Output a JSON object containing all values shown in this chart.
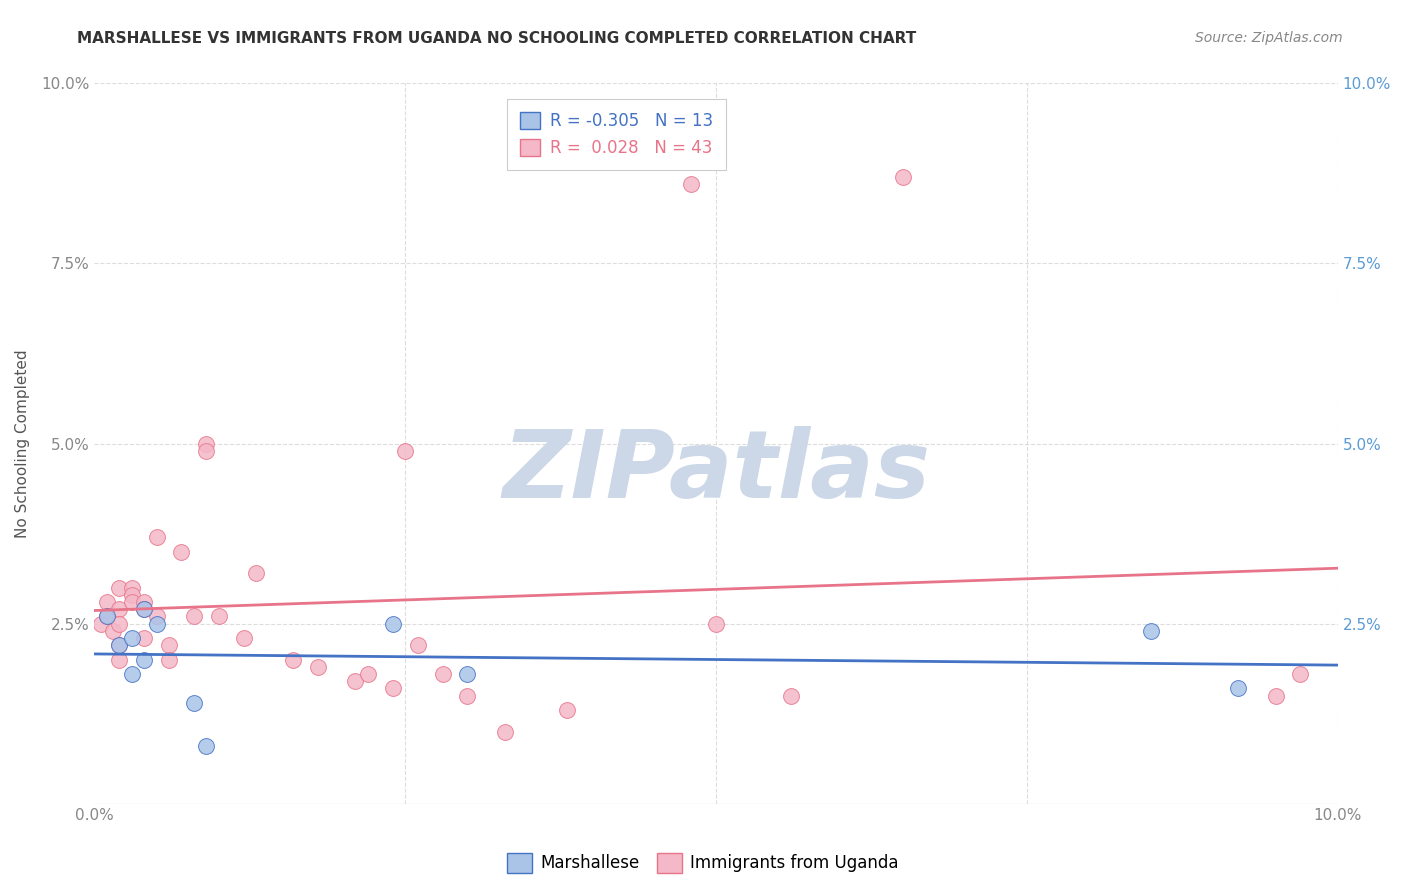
{
  "title": "MARSHALLESE VS IMMIGRANTS FROM UGANDA NO SCHOOLING COMPLETED CORRELATION CHART",
  "source": "Source: ZipAtlas.com",
  "ylabel": "No Schooling Completed",
  "xlim": [
    0,
    0.1
  ],
  "ylim": [
    0,
    0.1
  ],
  "background_color": "#ffffff",
  "grid_color": "#dddddd",
  "marshallese_color": "#aac4e8",
  "uganda_color": "#f4b8c8",
  "marshallese_line_color": "#4472c4",
  "uganda_line_color": "#e8748a",
  "R_marshallese": -0.305,
  "N_marshallese": 13,
  "R_uganda": 0.028,
  "N_uganda": 43,
  "marshallese_x": [
    0.001,
    0.002,
    0.003,
    0.003,
    0.004,
    0.004,
    0.005,
    0.008,
    0.009,
    0.024,
    0.03,
    0.085,
    0.092
  ],
  "marshallese_y": [
    0.026,
    0.022,
    0.023,
    0.018,
    0.027,
    0.02,
    0.025,
    0.014,
    0.008,
    0.025,
    0.018,
    0.024,
    0.016
  ],
  "uganda_x": [
    0.0005,
    0.001,
    0.001,
    0.0015,
    0.002,
    0.002,
    0.002,
    0.002,
    0.002,
    0.003,
    0.003,
    0.003,
    0.004,
    0.004,
    0.004,
    0.005,
    0.005,
    0.006,
    0.006,
    0.007,
    0.008,
    0.009,
    0.009,
    0.01,
    0.012,
    0.013,
    0.016,
    0.018,
    0.021,
    0.022,
    0.024,
    0.025,
    0.026,
    0.028,
    0.03,
    0.033,
    0.038,
    0.048,
    0.05,
    0.056,
    0.065,
    0.095,
    0.097
  ],
  "uganda_y": [
    0.025,
    0.028,
    0.026,
    0.024,
    0.03,
    0.027,
    0.025,
    0.022,
    0.02,
    0.03,
    0.029,
    0.028,
    0.028,
    0.027,
    0.023,
    0.037,
    0.026,
    0.022,
    0.02,
    0.035,
    0.026,
    0.05,
    0.049,
    0.026,
    0.023,
    0.032,
    0.02,
    0.019,
    0.017,
    0.018,
    0.016,
    0.049,
    0.022,
    0.018,
    0.015,
    0.01,
    0.013,
    0.086,
    0.025,
    0.015,
    0.087,
    0.015,
    0.018
  ],
  "marker_size": 130,
  "watermark_text": "ZIPatlas",
  "watermark_color": "#ccd8e8",
  "watermark_fontsize": 68,
  "title_fontsize": 11,
  "source_fontsize": 10,
  "axis_tick_fontsize": 11,
  "right_tick_color": "#5b9bd5"
}
